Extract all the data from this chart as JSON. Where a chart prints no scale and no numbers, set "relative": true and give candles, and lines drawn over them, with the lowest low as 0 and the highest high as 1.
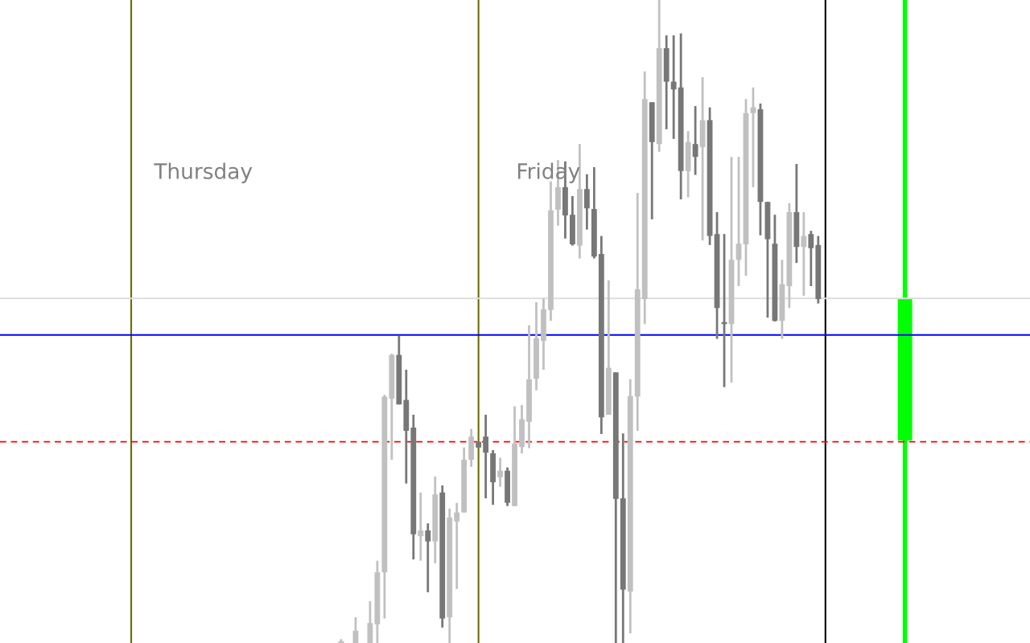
{
  "chart_data": {
    "type": "candlestick",
    "relative": true,
    "categories": [
      null,
      null,
      null,
      null,
      null,
      null,
      null,
      null,
      null,
      null,
      null,
      null,
      null,
      null,
      null,
      null,
      null,
      null,
      null,
      null,
      null,
      null,
      null,
      null,
      null,
      null,
      null,
      null,
      null,
      null,
      null,
      null,
      null,
      null,
      null,
      null,
      null,
      null,
      null,
      null,
      null,
      null,
      null,
      null,
      null,
      null,
      null,
      null,
      null,
      null,
      null,
      null,
      null,
      null,
      null,
      null,
      null,
      null,
      null,
      null,
      null,
      null,
      null,
      null,
      null,
      null,
      null
    ],
    "annotations": [
      "Thursday",
      "Friday"
    ],
    "ref_lines": [
      {
        "axis": "y",
        "value": 0.536,
        "color": "#dddddd",
        "line_style": "solid"
      },
      {
        "axis": "y",
        "value": 0.479,
        "color": "#0000ff",
        "line_style": "solid"
      },
      {
        "axis": "y",
        "value": 0.313,
        "color": "#ff0000",
        "line_style": "dashed"
      }
    ],
    "series": [
      {
        "colors": [
          "#c0c0c0",
          "#c0c0c0",
          "#c0c0c0",
          "#c0c0c0",
          "#c0c0c0",
          "#c0c0c0",
          "#c0c0c0",
          "#c0c0c0",
          "#777777",
          "#777777",
          "#777777",
          "#c0c0c0",
          "#777777",
          "#c0c0c0",
          "#777777",
          "#c0c0c0",
          "#c0c0c0",
          "#c0c0c0",
          "#c0c0c0",
          "#777777",
          "#777777",
          "#777777",
          "#c0c0c0",
          "#777777",
          "#c0c0c0",
          "#c0c0c0",
          "#c0c0c0",
          "#c0c0c0",
          "#c0c0c0",
          "#c0c0c0",
          "#c0c0c0",
          "#777777",
          "#777777",
          "#c0c0c0",
          "#777777",
          "#777777",
          "#777777",
          "#c0c0c0",
          "#777777",
          "#777777",
          "#c0c0c0",
          "#c0c0c0",
          "#c0c0c0",
          "#777777",
          "#c0c0c0",
          "#777777",
          "#777777",
          "#777777",
          "#c0c0c0",
          "#777777",
          "#c0c0c0",
          "#777777",
          "#777777",
          "#777777",
          "#c0c0c0",
          "#c0c0c0",
          "#c0c0c0",
          "#c0c0c0",
          "#777777",
          "#777777",
          "#777777",
          "#c0c0c0",
          "#c0c0c0",
          "#777777",
          "#c0c0c0",
          "#777777",
          "#777777"
        ],
        "ohlc": [
          [
            0,
            0.006,
            0,
            0.003
          ],
          null,
          [
            0,
            0.04,
            0,
            0.019
          ],
          null,
          [
            0,
            0.065,
            0,
            0.031
          ],
          [
            0.029,
            0.128,
            0,
            0.11
          ],
          [
            0.11,
            0.386,
            0.038,
            0.383
          ],
          [
            0.38,
            0.45,
            0.285,
            0.448
          ],
          [
            0.448,
            0.478,
            0.371,
            0.371
          ],
          [
            0.378,
            0.425,
            0.248,
            0.33
          ],
          [
            0.335,
            0.355,
            0.13,
            0.169
          ],
          [
            0.166,
            0.234,
            0.128,
            0.175
          ],
          [
            0.175,
            0.186,
            0.079,
            0.158
          ],
          [
            0.158,
            0.259,
            0.124,
            0.231
          ],
          [
            0.234,
            0.245,
            0.024,
            0.038
          ],
          [
            0.04,
            0.209,
            0,
            0.195
          ],
          [
            0.189,
            0.218,
            0.084,
            0.203
          ],
          [
            0.203,
            0.304,
            0.203,
            0.285
          ],
          [
            0.285,
            0.333,
            0.274,
            0.321
          ],
          [
            0.313,
            0.313,
            0.304,
            0.304
          ],
          [
            0.321,
            0.355,
            0.225,
            0.296
          ],
          [
            0.295,
            0.3,
            0.215,
            0.25
          ],
          [
            0.258,
            0.288,
            0.243,
            0.268
          ],
          [
            0.268,
            0.273,
            0.213,
            0.218
          ],
          [
            0.213,
            0.368,
            0.213,
            0.31
          ],
          [
            0.305,
            0.37,
            0.295,
            0.348
          ],
          [
            0.344,
            0.494,
            0.303,
            0.41
          ],
          [
            0.411,
            0.53,
            0.393,
            0.474
          ],
          [
            0.47,
            0.536,
            0.425,
            0.519
          ],
          [
            0.518,
            0.718,
            0.501,
            0.673
          ],
          [
            0.674,
            0.751,
            0.649,
            0.709
          ],
          [
            0.709,
            0.749,
            0.629,
            0.665
          ],
          [
            0.666,
            0.695,
            0.618,
            0.62
          ],
          [
            0.618,
            0.776,
            0.598,
            0.706
          ],
          [
            0.706,
            0.729,
            0.643,
            0.676
          ],
          [
            0.675,
            0.74,
            0.598,
            0.601
          ],
          [
            0.605,
            0.633,
            0.325,
            0.351
          ],
          [
            0.355,
            0.564,
            0.355,
            0.428
          ],
          [
            0.421,
            0.421,
            0,
            0.224
          ],
          [
            0.225,
            0.326,
            0,
            0.083
          ],
          [
            0.08,
            0.41,
            0.015,
            0.384
          ],
          [
            0.383,
            0.7,
            0.33,
            0.55
          ],
          [
            0.535,
            0.889,
            0.496,
            0.846
          ],
          [
            0.841,
            0.841,
            0.659,
            0.779
          ],
          [
            0.776,
            1,
            0.764,
            0.925
          ],
          [
            0.925,
            0.945,
            0.799,
            0.873
          ],
          [
            0.873,
            0.945,
            0.784,
            0.861
          ],
          [
            0.864,
            0.948,
            0.69,
            0.734
          ],
          [
            0.734,
            0.796,
            0.693,
            0.779
          ],
          [
            0.776,
            0.835,
            0.728,
            0.756
          ],
          [
            0.771,
            0.88,
            0.626,
            0.813
          ],
          [
            0.813,
            0.833,
            0.619,
            0.633
          ],
          [
            0.636,
            0.67,
            0.473,
            0.521
          ],
          [
            0.499,
            0.636,
            0.398,
            0.496
          ],
          [
            0.496,
            0.756,
            0.405,
            0.596
          ],
          [
            0.596,
            0.756,
            0.555,
            0.621
          ],
          [
            0.62,
            0.846,
            0.571,
            0.824
          ],
          [
            0.824,
            0.864,
            0.709,
            0.833
          ],
          [
            0.83,
            0.839,
            0.634,
            0.686
          ],
          [
            0.686,
            0.686,
            0.506,
            0.628
          ],
          [
            0.621,
            0.666,
            0.5,
            0.501
          ],
          [
            0.501,
            0.596,
            0.473,
            0.558
          ],
          [
            0.555,
            0.684,
            0.521,
            0.67
          ],
          [
            0.67,
            0.745,
            0.591,
            0.616
          ],
          [
            0.616,
            0.67,
            0.54,
            0.633
          ],
          [
            0.636,
            0.641,
            0.555,
            0.614
          ],
          [
            0.619,
            0.633,
            0.528,
            0.535
          ]
        ]
      }
    ]
  }
}
